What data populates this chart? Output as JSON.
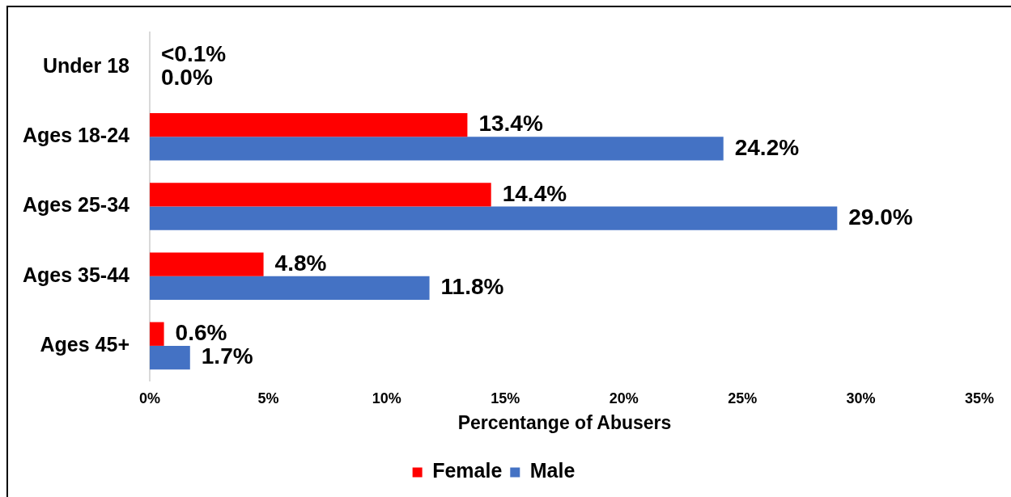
{
  "chart_data": {
    "type": "bar",
    "orientation": "horizontal",
    "categories": [
      "Under 18",
      "Ages 18-24",
      "Ages 25-34",
      "Ages 35-44",
      "Ages 45+"
    ],
    "series": [
      {
        "name": "Female",
        "color": "#ff0000",
        "values": [
          0,
          13.4,
          14.4,
          4.8,
          0.6
        ],
        "value_labels": [
          "<0.1%",
          "13.4%",
          "14.4%",
          "4.8%",
          "0.6%"
        ]
      },
      {
        "name": "Male",
        "color": "#4472c4",
        "values": [
          0.0,
          24.2,
          29.0,
          11.8,
          1.7
        ],
        "value_labels": [
          "0.0%",
          "24.2%",
          "29.0%",
          "11.8%",
          "1.7%"
        ]
      }
    ],
    "xlabel": "Percentange of Abusers",
    "xlim": [
      0,
      35
    ],
    "xticks": [
      {
        "value": 0,
        "label": "0%"
      },
      {
        "value": 5,
        "label": "5%"
      },
      {
        "value": 10,
        "label": "10%"
      },
      {
        "value": 15,
        "label": "15%"
      },
      {
        "value": 20,
        "label": "20%"
      },
      {
        "value": 25,
        "label": "25%"
      },
      {
        "value": 30,
        "label": "30%"
      },
      {
        "value": 35,
        "label": "35%"
      }
    ],
    "legend": "bottom",
    "grid": false
  }
}
